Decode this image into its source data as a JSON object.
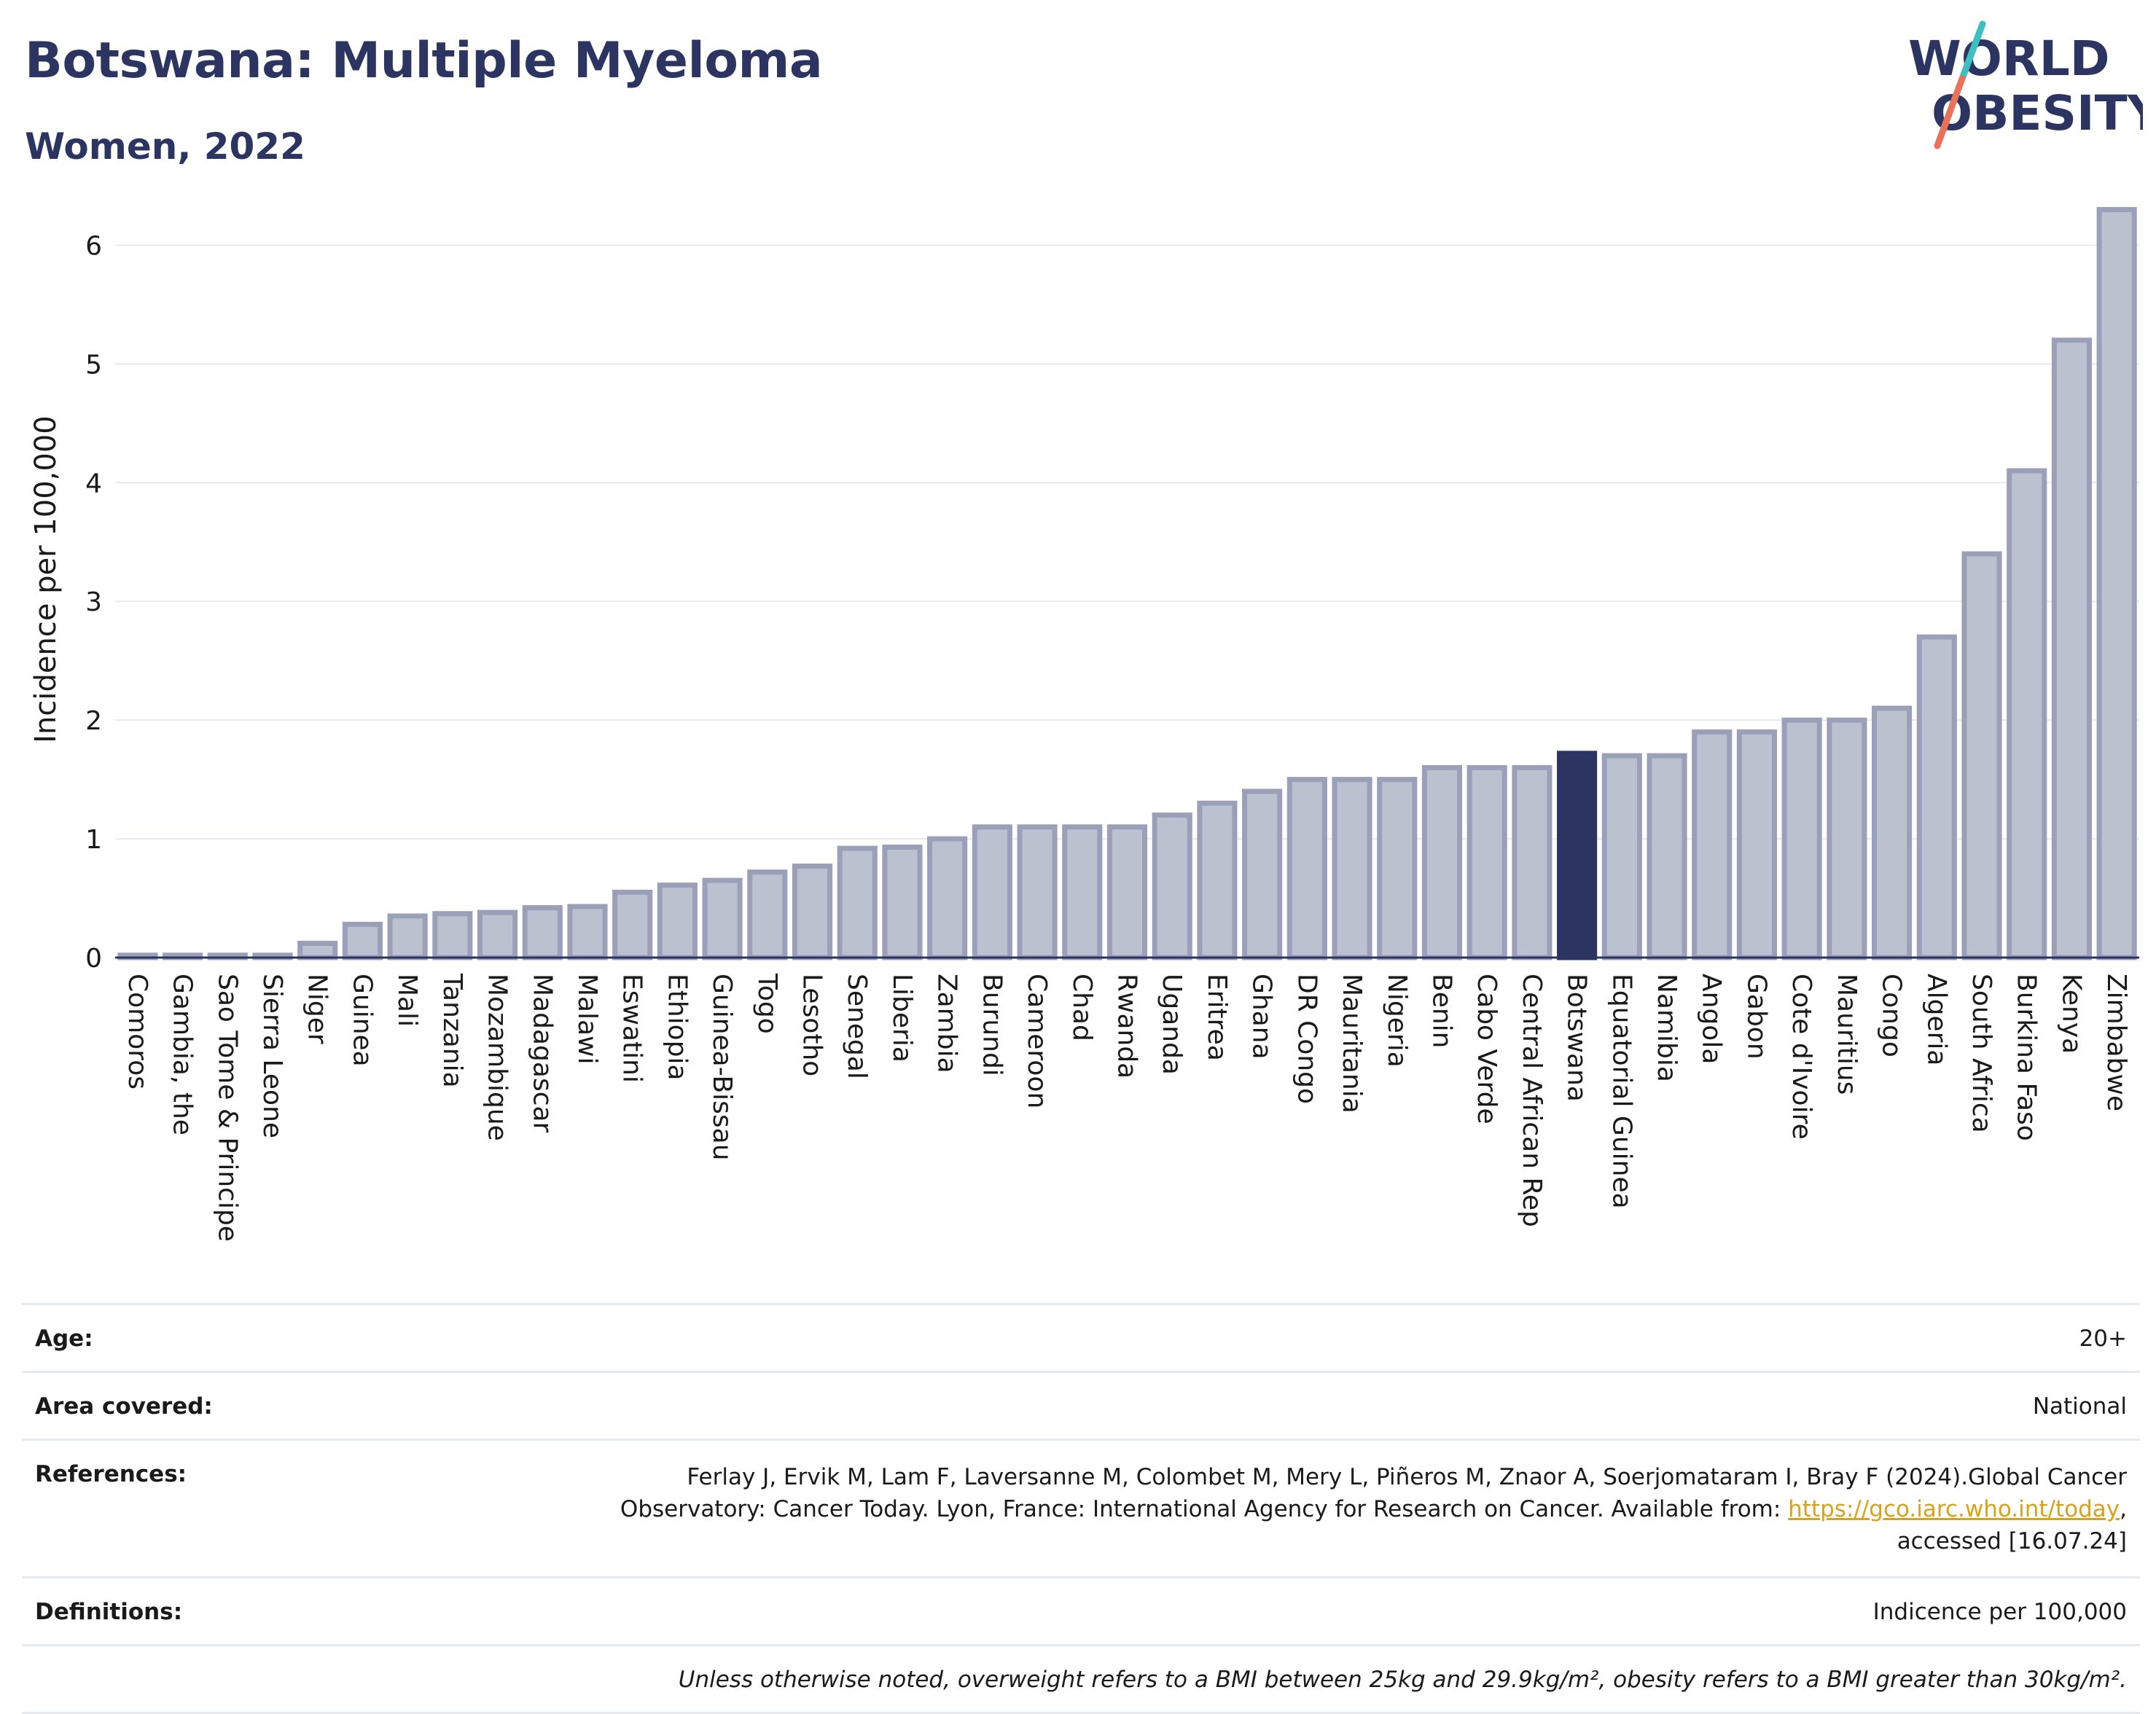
{
  "header": {
    "title": "Botswana: Multiple Myeloma",
    "subtitle": "Women, 2022",
    "logo_text_line1": "WORLD",
    "logo_text_line2": "OBESITY"
  },
  "colors": {
    "bar": "#bcc1cf",
    "bar_stroke": "#9aa0b8",
    "highlight": "#2c3561",
    "title": "#2c3561",
    "grid": "#e8e8ee",
    "link": "#d8a21a"
  },
  "chart_data": {
    "type": "bar",
    "ylabel": "Incidence per 100,000",
    "xlabel": "",
    "ylim": [
      0,
      6.5
    ],
    "yticks": [
      0,
      1,
      2,
      3,
      4,
      5,
      6
    ],
    "highlight": "Botswana",
    "categories": [
      "Comoros",
      "Gambia, the",
      "Sao Tome & Principe",
      "Sierra Leone",
      "Niger",
      "Guinea",
      "Mali",
      "Tanzania",
      "Mozambique",
      "Madagascar",
      "Malawi",
      "Eswatini",
      "Ethiopia",
      "Guinea-Bissau",
      "Togo",
      "Lesotho",
      "Senegal",
      "Liberia",
      "Zambia",
      "Burundi",
      "Cameroon",
      "Chad",
      "Rwanda",
      "Uganda",
      "Eritrea",
      "Ghana",
      "DR Congo",
      "Mauritania",
      "Nigeria",
      "Benin",
      "Cabo Verde",
      "Central African Rep",
      "Botswana",
      "Equatorial Guinea",
      "Namibia",
      "Angola",
      "Gabon",
      "Cote d'Ivoire",
      "Mauritius",
      "Congo",
      "Algeria",
      "South Africa",
      "Burkina Faso",
      "Kenya",
      "Zimbabwe"
    ],
    "values": [
      0.02,
      0.02,
      0.02,
      0.02,
      0.12,
      0.28,
      0.35,
      0.37,
      0.38,
      0.42,
      0.43,
      0.55,
      0.61,
      0.65,
      0.72,
      0.77,
      0.92,
      0.93,
      1.0,
      1.1,
      1.1,
      1.1,
      1.1,
      1.2,
      1.3,
      1.4,
      1.5,
      1.5,
      1.5,
      1.6,
      1.6,
      1.6,
      1.72,
      1.7,
      1.7,
      1.9,
      1.9,
      2.0,
      2.0,
      2.1,
      2.7,
      3.4,
      4.1,
      5.2,
      6.3
    ]
  },
  "info": {
    "age_label": "Age:",
    "age_value": "20+",
    "area_label": "Area covered:",
    "area_value": "National",
    "references_label": "References:",
    "references_line1": "Ferlay J, Ervik M, Lam F, Laversanne M, Colombet M, Mery L, Piñeros M, Znaor A, Soerjomataram I, Bray F (2024).Global Cancer",
    "references_line2_prefix": "Observatory: Cancer Today. Lyon, France: International Agency for Research on Cancer. Available from: ",
    "references_link": "https://gco.iarc.who.int/today",
    "references_line2_suffix": ",",
    "references_line3": "accessed [16.07.24]",
    "definitions_label": "Definitions:",
    "definitions_value": "Indicence per 100,000",
    "note": "Unless otherwise noted, overweight refers to a BMI between 25kg and 29.9kg/m², obesity refers to a BMI greater than 30kg/m²."
  }
}
